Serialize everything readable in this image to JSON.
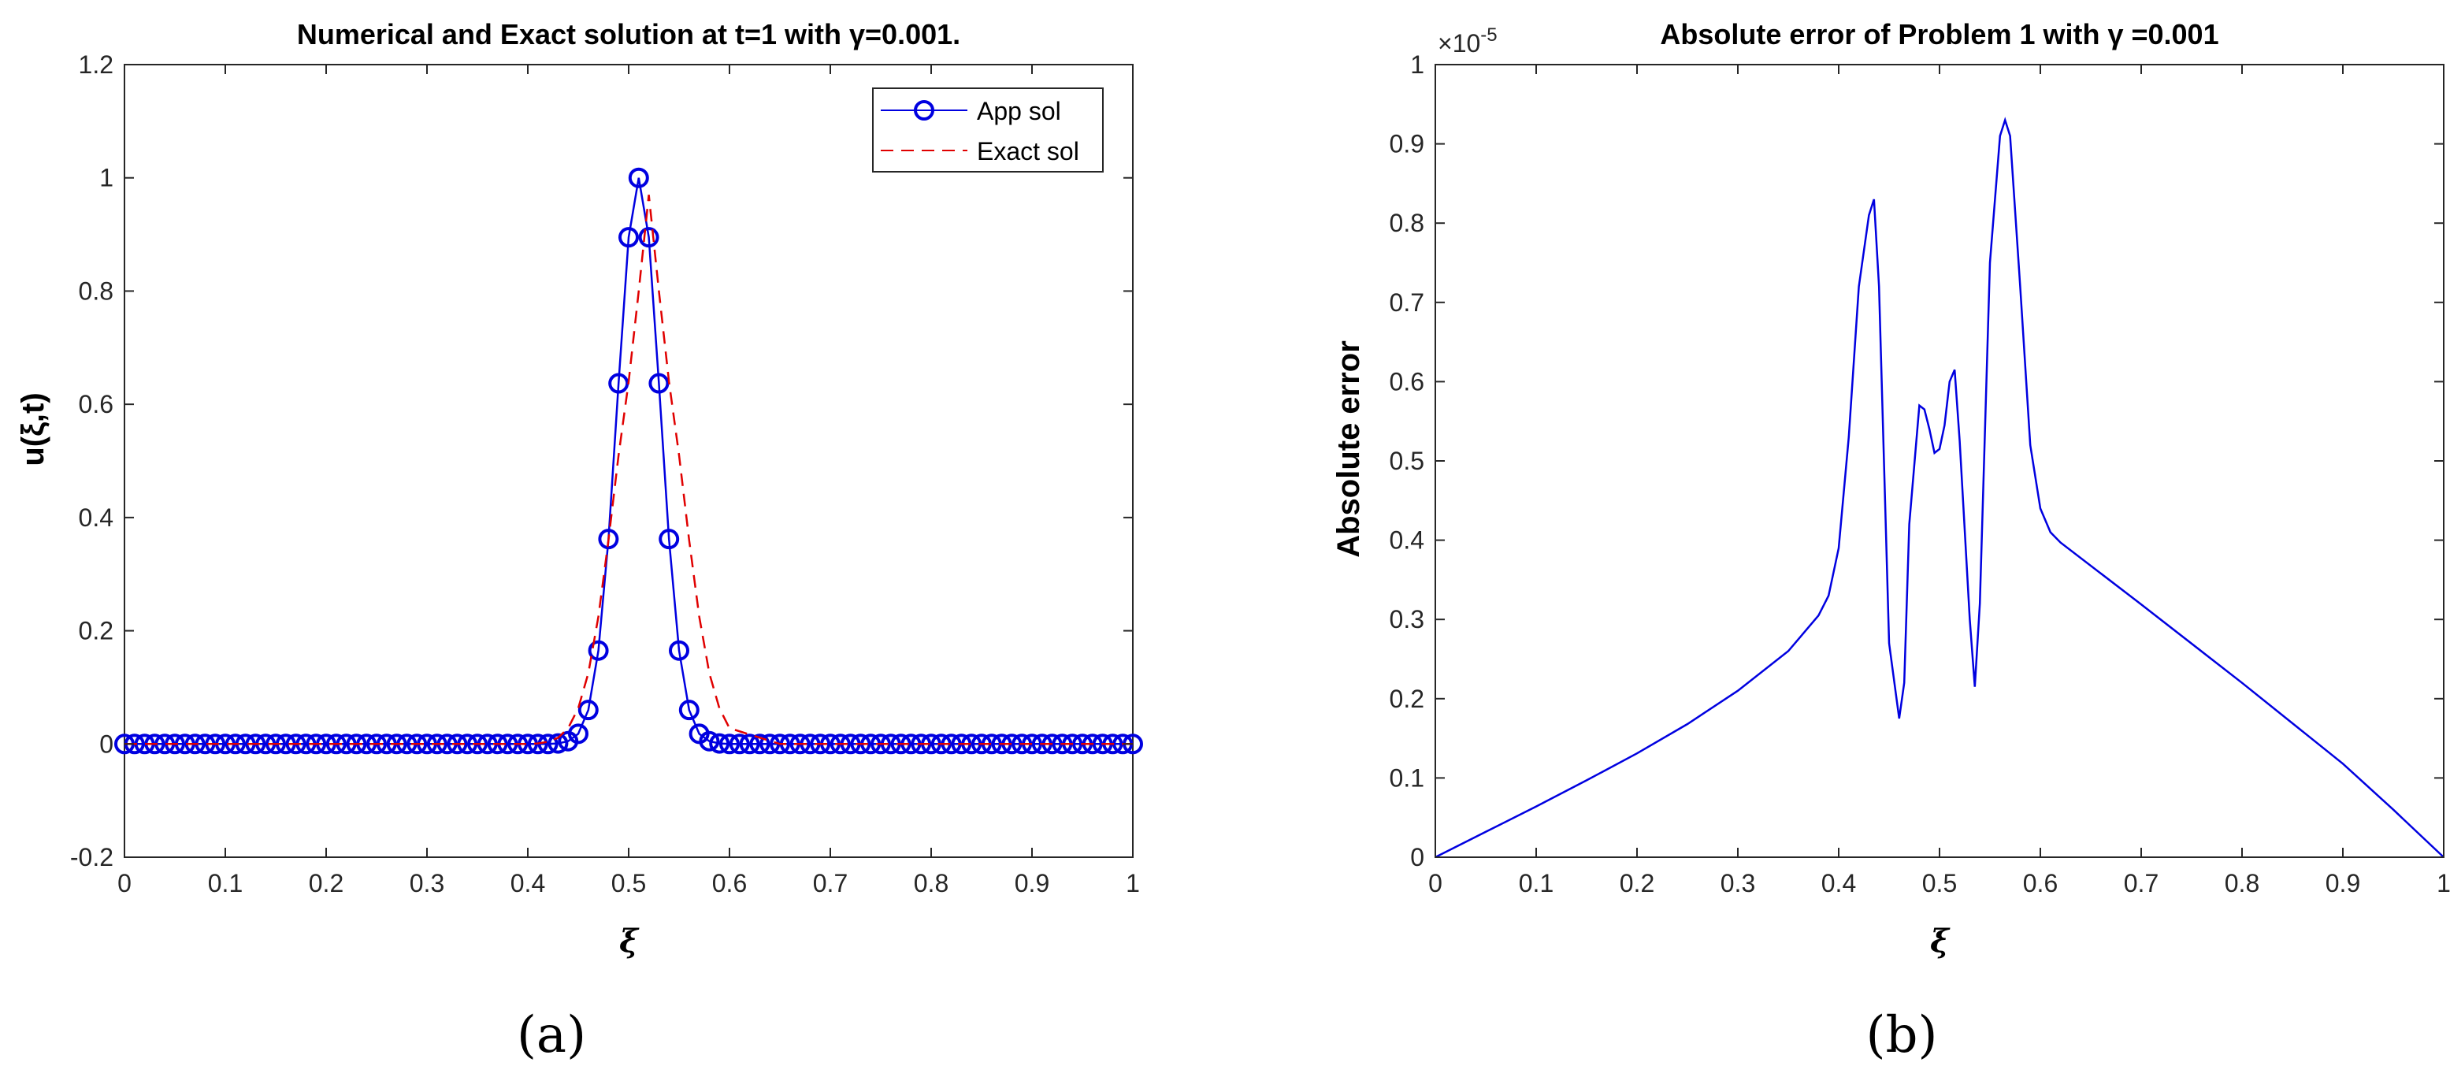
{
  "chart_data": [
    {
      "type": "line",
      "title": "Numerical and Exact solution at t=1 with γ=0.001.",
      "xlabel": "ξ",
      "ylabel": "u(ξ,t)",
      "xlim": [
        0,
        1
      ],
      "ylim": [
        -0.2,
        1.2
      ],
      "x_ticks": [
        "0",
        "0.1",
        "0.2",
        "0.3",
        "0.4",
        "0.5",
        "0.6",
        "0.7",
        "0.8",
        "0.9",
        "1"
      ],
      "y_ticks": [
        "-0.2",
        "0",
        "0.2",
        "0.4",
        "0.6",
        "0.8",
        "1",
        "1.2"
      ],
      "grid": false,
      "legend_position": "top-right",
      "panel_label": "(a)",
      "series": [
        {
          "name": "App sol",
          "color": "#0000e0",
          "style": "solid line with circle markers",
          "x": [
            0,
            0.01,
            0.02,
            0.03,
            0.04,
            0.05,
            0.06,
            0.07,
            0.08,
            0.09,
            0.1,
            0.11,
            0.12,
            0.13,
            0.14,
            0.15,
            0.16,
            0.17,
            0.18,
            0.19,
            0.2,
            0.21,
            0.22,
            0.23,
            0.24,
            0.25,
            0.26,
            0.27,
            0.28,
            0.29,
            0.3,
            0.31,
            0.32,
            0.33,
            0.34,
            0.35,
            0.36,
            0.37,
            0.38,
            0.39,
            0.4,
            0.41,
            0.42,
            0.43,
            0.44,
            0.45,
            0.46,
            0.47,
            0.48,
            0.49,
            0.5,
            0.51,
            0.52,
            0.53,
            0.54,
            0.55,
            0.56,
            0.57,
            0.58,
            0.59,
            0.6,
            0.61,
            0.62,
            0.63,
            0.64,
            0.65,
            0.66,
            0.67,
            0.68,
            0.69,
            0.7,
            0.71,
            0.72,
            0.73,
            0.74,
            0.75,
            0.76,
            0.77,
            0.78,
            0.79,
            0.8,
            0.81,
            0.82,
            0.83,
            0.84,
            0.85,
            0.86,
            0.87,
            0.88,
            0.89,
            0.9,
            0.91,
            0.92,
            0.93,
            0.94,
            0.95,
            0.96,
            0.97,
            0.98,
            0.99,
            1
          ],
          "y": [
            0,
            0,
            0,
            0,
            0,
            0,
            0,
            0,
            0,
            0,
            0,
            0,
            0,
            0,
            0,
            0,
            0,
            0,
            0,
            0,
            0,
            0,
            0,
            0,
            0,
            0,
            0,
            0,
            0,
            0,
            0,
            0,
            0,
            0,
            0,
            0,
            0,
            0,
            0,
            0,
            0,
            0,
            0,
            0.001,
            0.005,
            0.018,
            0.06,
            0.165,
            0.362,
            0.637,
            0.895,
            1.0,
            0.895,
            0.637,
            0.362,
            0.165,
            0.06,
            0.018,
            0.005,
            0.001,
            0,
            0,
            0,
            0,
            0,
            0,
            0,
            0,
            0,
            0,
            0,
            0,
            0,
            0,
            0,
            0,
            0,
            0,
            0,
            0,
            0,
            0,
            0,
            0,
            0,
            0,
            0,
            0,
            0,
            0,
            0,
            0,
            0,
            0,
            0,
            0,
            0,
            0,
            0,
            0,
            0
          ]
        },
        {
          "name": "Exact sol",
          "color": "#e00000",
          "style": "dashed line",
          "x": [
            0,
            0.35,
            0.4,
            0.41,
            0.42,
            0.43,
            0.44,
            0.45,
            0.46,
            0.47,
            0.48,
            0.49,
            0.5,
            0.51,
            0.52,
            0.53,
            0.54,
            0.55,
            0.56,
            0.57,
            0.58,
            0.59,
            0.6,
            0.65,
            1
          ],
          "y": [
            0,
            0,
            0,
            0.001,
            0.004,
            0.011,
            0.028,
            0.063,
            0.125,
            0.225,
            0.36,
            0.51,
            0.64,
            0.8,
            0.97,
            0.8,
            0.64,
            0.51,
            0.36,
            0.225,
            0.125,
            0.063,
            0.028,
            0,
            0
          ]
        }
      ]
    },
    {
      "type": "line",
      "title": "Absolute error of Problem 1 with γ =0.001",
      "xlabel": "ξ",
      "ylabel": "Absolute error",
      "y_exponent_label": "×10",
      "y_exponent": "-5",
      "xlim": [
        0,
        1
      ],
      "ylim": [
        0,
        1
      ],
      "x_ticks": [
        "0",
        "0.1",
        "0.2",
        "0.3",
        "0.4",
        "0.5",
        "0.6",
        "0.7",
        "0.8",
        "0.9",
        "1"
      ],
      "y_ticks": [
        "0",
        "0.1",
        "0.2",
        "0.3",
        "0.4",
        "0.5",
        "0.6",
        "0.7",
        "0.8",
        "0.9",
        "1"
      ],
      "grid": false,
      "panel_label": "(b)",
      "series": [
        {
          "color": "#0000e0",
          "style": "solid line",
          "x": [
            0,
            0.05,
            0.1,
            0.15,
            0.2,
            0.25,
            0.3,
            0.35,
            0.38,
            0.39,
            0.4,
            0.41,
            0.42,
            0.43,
            0.435,
            0.44,
            0.45,
            0.46,
            0.465,
            0.47,
            0.48,
            0.485,
            0.49,
            0.495,
            0.5,
            0.505,
            0.51,
            0.515,
            0.52,
            0.53,
            0.535,
            0.54,
            0.55,
            0.56,
            0.565,
            0.57,
            0.58,
            0.59,
            0.6,
            0.61,
            0.62,
            0.7,
            0.8,
            0.9,
            0.95,
            1
          ],
          "y": [
            0,
            0.032,
            0.064,
            0.097,
            0.131,
            0.168,
            0.21,
            0.26,
            0.305,
            0.33,
            0.39,
            0.53,
            0.72,
            0.81,
            0.83,
            0.72,
            0.27,
            0.175,
            0.22,
            0.42,
            0.57,
            0.565,
            0.54,
            0.51,
            0.515,
            0.545,
            0.6,
            0.615,
            0.525,
            0.3,
            0.215,
            0.32,
            0.75,
            0.91,
            0.93,
            0.91,
            0.72,
            0.52,
            0.44,
            0.41,
            0.397,
            0.319,
            0.22,
            0.118,
            0.06,
            0
          ]
        }
      ]
    }
  ]
}
